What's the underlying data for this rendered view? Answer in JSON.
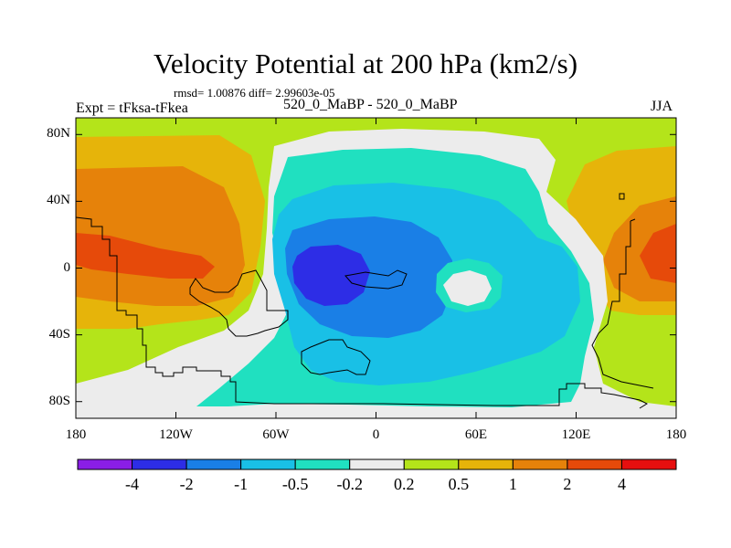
{
  "title": "Velocity Potential at 200 hPa (km2/s)",
  "stats": "rmsd= 1.00876 diff= 2.99603e-05",
  "experiment": "Expt = tFksa-tFkea",
  "subtitle": "520_0_MaBP - 520_0_MaBP",
  "season": "JJA",
  "axes": {
    "lat_ticks": [
      {
        "lat": 80,
        "label": "80N"
      },
      {
        "lat": 40,
        "label": "40N"
      },
      {
        "lat": 0,
        "label": "0"
      },
      {
        "lat": -40,
        "label": "40S"
      },
      {
        "lat": -80,
        "label": "80S"
      }
    ],
    "lon_ticks": [
      {
        "lon": -180,
        "label": "180"
      },
      {
        "lon": -120,
        "label": "120W"
      },
      {
        "lon": -60,
        "label": "60W"
      },
      {
        "lon": 0,
        "label": "0"
      },
      {
        "lon": 60,
        "label": "60E"
      },
      {
        "lon": 120,
        "label": "120E"
      },
      {
        "lon": 180,
        "label": "180"
      }
    ]
  },
  "colorbar": {
    "colors": [
      "#8a1ee6",
      "#2d2de6",
      "#1a7fe6",
      "#19c0e6",
      "#20e0c0",
      "#ececec",
      "#b4e41a",
      "#e6b40a",
      "#e6820a",
      "#e64a0a",
      "#e60f0f"
    ],
    "labels": [
      "-4",
      "-2",
      "-1",
      "-0.5",
      "-0.2",
      "0.2",
      "0.5",
      "1",
      "2",
      "4"
    ]
  },
  "chart_data": {
    "type": "contour-map",
    "variable": "Velocity Potential at 200 hPa",
    "units": "km2/s",
    "projection": "cylindrical equidistant",
    "lon_range": [
      -180,
      180
    ],
    "lat_range": [
      -90,
      90
    ],
    "contour_levels": [
      -4,
      -2,
      -1,
      -0.5,
      -0.2,
      0.2,
      0.5,
      1,
      2,
      4
    ],
    "field_features": [
      {
        "name": "minimum",
        "lon": -25,
        "lat": 0,
        "value_range": "< -2"
      },
      {
        "name": "local high",
        "lon": 60,
        "lat": -5,
        "value_range": "-0.2 to 0.2"
      },
      {
        "name": "maximum-west",
        "lon": -160,
        "lat": 10,
        "value_range": "2 to 4"
      },
      {
        "name": "maximum-east",
        "lon": 175,
        "lat": 10,
        "value_range": "2 to 4"
      }
    ]
  }
}
